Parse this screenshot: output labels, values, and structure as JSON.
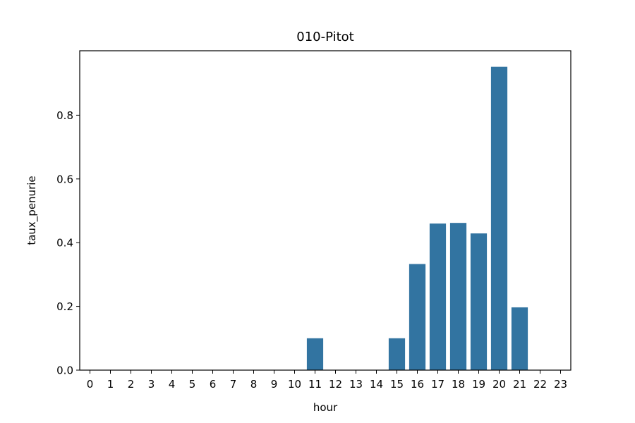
{
  "chart_data": {
    "type": "bar",
    "title": "010-Pitot",
    "xlabel": "hour",
    "ylabel": "taux_penurie",
    "categories": [
      "0",
      "1",
      "2",
      "3",
      "4",
      "5",
      "6",
      "7",
      "8",
      "9",
      "10",
      "11",
      "12",
      "13",
      "14",
      "15",
      "16",
      "17",
      "18",
      "19",
      "20",
      "21",
      "22",
      "23"
    ],
    "values": [
      0,
      0,
      0,
      0,
      0,
      0,
      0,
      0,
      0,
      0,
      0,
      0.1,
      0,
      0,
      0,
      0.1,
      0.333,
      0.46,
      0.462,
      0.429,
      0.952,
      0.197,
      0,
      0
    ],
    "ylim": [
      0,
      1.0
    ],
    "yticks": [
      "0.0",
      "0.2",
      "0.4",
      "0.6",
      "0.8"
    ],
    "grid": false,
    "bar_color": "#3274a1"
  }
}
